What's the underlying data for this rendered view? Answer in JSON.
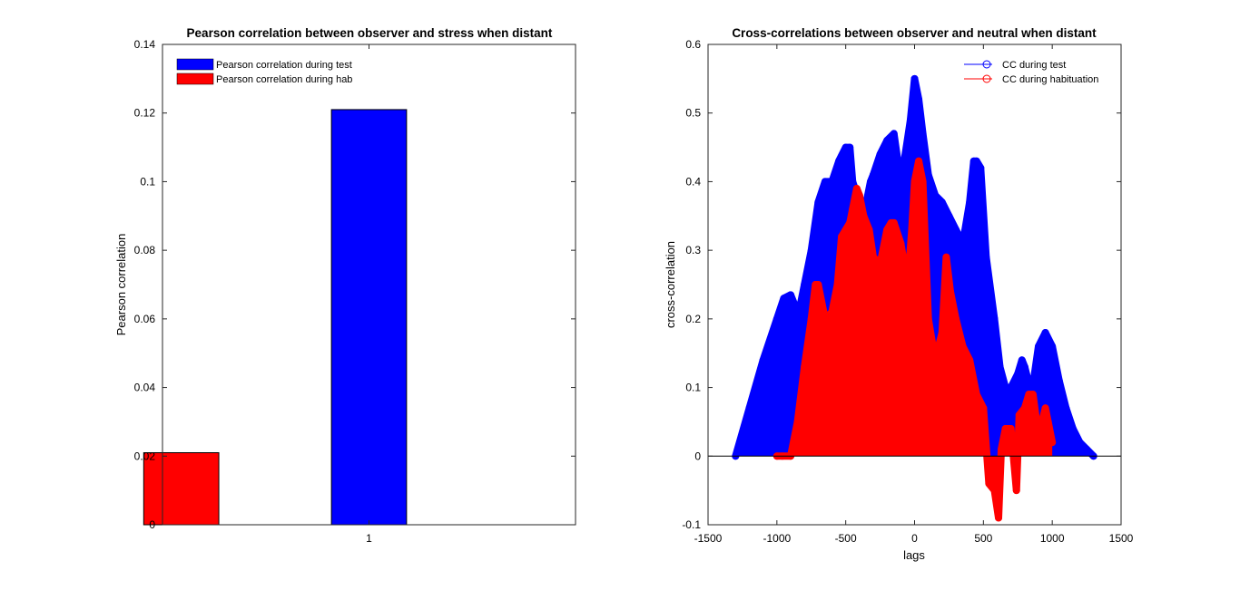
{
  "chart_data": [
    {
      "type": "bar",
      "title": "Pearson correlation between observer and stress when distant",
      "xlabel": "",
      "ylabel": "Pearson correlation",
      "ylim": [
        0,
        0.14
      ],
      "xlim": [
        0.45,
        1.55
      ],
      "yticks": [
        "0",
        "0.02",
        "0.04",
        "0.06",
        "0.08",
        "0.1",
        "0.12",
        "0.14"
      ],
      "xticks": [
        "1"
      ],
      "grid": false,
      "legend_position": "top-left",
      "series": [
        {
          "name": "Pearson correlation during test",
          "color": "#0000ff",
          "x": 1.0,
          "value": 0.121
        },
        {
          "name": "Pearson correlation during hab",
          "color": "#ff0000",
          "x": 0.5,
          "value": 0.021
        }
      ]
    },
    {
      "type": "line",
      "title": "Cross-correlations between observer and neutral when distant",
      "xlabel": "lags",
      "ylabel": "cross-correlation",
      "xlim": [
        -1500,
        1500
      ],
      "ylim": [
        -0.1,
        0.6
      ],
      "xticks": [
        "-1500",
        "-1000",
        "-500",
        "0",
        "500",
        "1000",
        "1500"
      ],
      "yticks": [
        "-0.1",
        "0",
        "0.1",
        "0.2",
        "0.3",
        "0.4",
        "0.5",
        "0.6"
      ],
      "grid": false,
      "legend_position": "top-right",
      "series": [
        {
          "name": "CC during test",
          "color": "#0000ff",
          "x": [
            -1300,
            -1200,
            -1100,
            -1000,
            -950,
            -900,
            -870,
            -830,
            -800,
            -750,
            -700,
            -650,
            -600,
            -550,
            -500,
            -470,
            -450,
            -400,
            -350,
            -320,
            -300,
            -250,
            -200,
            -150,
            -100,
            -60,
            -30,
            0,
            30,
            60,
            100,
            150,
            200,
            250,
            300,
            350,
            400,
            430,
            450,
            480,
            520,
            580,
            620,
            660,
            700,
            750,
            780,
            800,
            850,
            900,
            950,
            1000,
            1050,
            1100,
            1150,
            1200,
            1250,
            1300
          ],
          "y": [
            0.0,
            0.07,
            0.14,
            0.2,
            0.23,
            0.235,
            0.22,
            0.22,
            0.25,
            0.3,
            0.37,
            0.4,
            0.4,
            0.43,
            0.45,
            0.45,
            0.4,
            0.37,
            0.37,
            0.4,
            0.41,
            0.44,
            0.46,
            0.47,
            0.4,
            0.45,
            0.49,
            0.55,
            0.52,
            0.47,
            0.41,
            0.38,
            0.37,
            0.35,
            0.33,
            0.31,
            0.37,
            0.43,
            0.43,
            0.42,
            0.29,
            0.2,
            0.13,
            0.1,
            0.1,
            0.12,
            0.14,
            0.13,
            0.09,
            0.16,
            0.18,
            0.16,
            0.11,
            0.07,
            0.04,
            0.02,
            0.01,
            0.0
          ]
        },
        {
          "name": "CC during habituation",
          "color": "#ff0000",
          "x": [
            -1000,
            -960,
            -900,
            -850,
            -800,
            -750,
            -720,
            -700,
            -650,
            -600,
            -560,
            -530,
            -500,
            -470,
            -450,
            -420,
            -400,
            -370,
            -330,
            -300,
            -250,
            -200,
            -170,
            -150,
            -100,
            -50,
            -20,
            0,
            30,
            60,
            100,
            150,
            200,
            230,
            260,
            300,
            350,
            400,
            450,
            500,
            540,
            580,
            610,
            630,
            660,
            700,
            740,
            760,
            800,
            830,
            860,
            900,
            950,
            970,
            1000
          ],
          "y": [
            0.0,
            0.0,
            0.0,
            0.05,
            0.13,
            0.2,
            0.25,
            0.25,
            0.2,
            0.21,
            0.25,
            0.32,
            0.33,
            0.34,
            0.36,
            0.39,
            0.38,
            0.35,
            0.33,
            0.29,
            0.28,
            0.33,
            0.34,
            0.34,
            0.31,
            0.25,
            0.33,
            0.4,
            0.43,
            0.4,
            0.2,
            0.14,
            0.18,
            0.29,
            0.24,
            0.2,
            0.16,
            0.14,
            0.09,
            0.07,
            -0.04,
            -0.05,
            -0.09,
            0.01,
            0.04,
            0.04,
            -0.05,
            0.06,
            0.07,
            0.09,
            0.09,
            0.03,
            0.07,
            0.05,
            0.02
          ]
        }
      ]
    }
  ]
}
